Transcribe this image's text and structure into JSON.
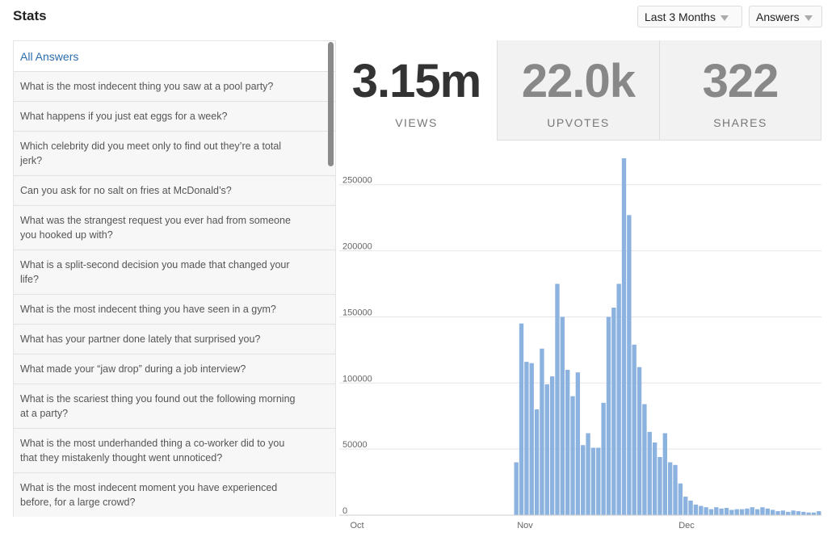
{
  "header": {
    "title": "Stats"
  },
  "filters": {
    "range": "Last 3 Months",
    "type": "Answers"
  },
  "sidebar": {
    "heading": "All Answers",
    "items": [
      "What is the most indecent thing you saw at a pool party?",
      "What happens if you just eat eggs for a week?",
      "Which celebrity did you meet only to find out they’re a total jerk?",
      "Can you ask for no salt on fries at McDonald’s?",
      "What was the strangest request you ever had from someone you hooked up with?",
      "What is a split-second decision you made that changed your life?",
      "What is the most indecent thing you have seen in a gym?",
      "What has your partner done lately that surprised you?",
      "What made your “jaw drop” during a job interview?",
      "What is the scariest thing you found out the following morning at a party?",
      "What is the most underhanded thing a co-worker did to you that they mistakenly thought went unnoticed?",
      "What is the most indecent moment you have experienced before, for a large crowd?"
    ]
  },
  "stats": [
    {
      "value": "3.15m",
      "label": "VIEWS"
    },
    {
      "value": "22.0k",
      "label": "UPVOTES"
    },
    {
      "value": "322",
      "label": "SHARES"
    }
  ],
  "colors": {
    "bar": "#8cb2e0",
    "link": "#2b6dad",
    "grid": "#e5e5e5"
  },
  "chart_data": {
    "type": "bar",
    "ylim": [
      0,
      270000
    ],
    "yticks": [
      0,
      50000,
      100000,
      150000,
      200000,
      250000
    ],
    "ytick_labels": [
      "0",
      "50000",
      "100000",
      "150000",
      "200000",
      "250000"
    ],
    "xticks": [
      "Oct",
      "Nov",
      "Dec"
    ],
    "values": [
      0,
      0,
      0,
      0,
      0,
      0,
      0,
      0,
      0,
      0,
      0,
      0,
      0,
      0,
      0,
      0,
      0,
      0,
      0,
      0,
      0,
      0,
      0,
      0,
      0,
      0,
      0,
      0,
      0,
      0,
      0,
      0,
      0,
      0,
      0,
      0,
      0,
      0,
      0,
      0,
      0,
      0,
      0,
      0,
      0,
      0,
      0,
      0,
      0,
      40000,
      145000,
      116000,
      115000,
      80000,
      126000,
      99000,
      105000,
      175000,
      150000,
      110000,
      90000,
      108000,
      53000,
      62000,
      51000,
      51000,
      85000,
      150000,
      157000,
      175000,
      270000,
      227000,
      129000,
      112000,
      84000,
      63000,
      55000,
      44000,
      62000,
      40000,
      38000,
      24000,
      14000,
      11000,
      8000,
      7000,
      6000,
      4500,
      6000,
      5000,
      5500,
      4000,
      4500,
      4500,
      5000,
      6000,
      4500,
      6000,
      5000,
      4000,
      3000,
      3500,
      2500,
      3500,
      3000,
      2500,
      2000,
      2000,
      3000
    ]
  }
}
